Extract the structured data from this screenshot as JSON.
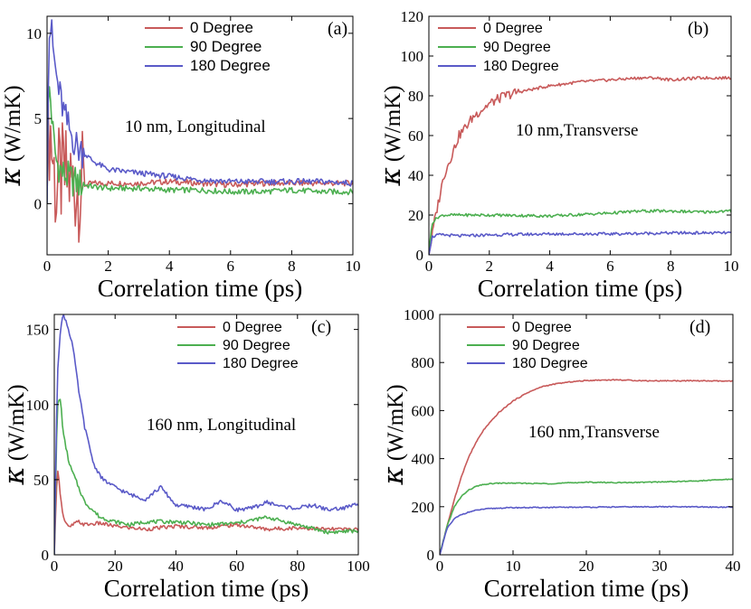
{
  "figure": {
    "colors": {
      "deg0": "#c85a5a",
      "deg90": "#4caf50",
      "deg180": "#5a5ac8"
    }
  },
  "chart_data": [
    {
      "type": "line",
      "panel_label": "(a)",
      "annotation": "10 nm, Longitudinal",
      "xlabel": "Correlation time (ps)",
      "ylabel_symbol": "κ",
      "ylabel_unit": "(W/mK)",
      "xlim": [
        0,
        10
      ],
      "ylim": [
        -3,
        11
      ],
      "xticks": [
        0,
        2,
        4,
        6,
        8,
        10
      ],
      "yticks": [
        0,
        5,
        10
      ],
      "legend": [
        "0 Degree",
        "90 Degree",
        "180 Degree"
      ],
      "series": [
        {
          "name": "0 Degree",
          "x": [
            0,
            0.05,
            0.1,
            0.2,
            0.3,
            0.4,
            0.6,
            0.8,
            1,
            1.5,
            2,
            3,
            4,
            5,
            6,
            7,
            8,
            9,
            10
          ],
          "y": [
            0,
            4,
            4.5,
            2.5,
            0.5,
            1.5,
            1.5,
            1.2,
            1.0,
            1.2,
            1.2,
            1.2,
            1.3,
            1.2,
            1.1,
            1.2,
            1.2,
            1.2,
            1.2
          ]
        },
        {
          "name": "90 Degree",
          "x": [
            0,
            0.05,
            0.1,
            0.2,
            0.3,
            0.5,
            0.8,
            1,
            1.5,
            2,
            3,
            4,
            5,
            6,
            7,
            8,
            9,
            10
          ],
          "y": [
            0,
            7,
            6.5,
            4,
            2.5,
            1.8,
            1.4,
            1.2,
            1.0,
            0.9,
            0.9,
            0.8,
            0.8,
            0.7,
            0.7,
            0.8,
            0.7,
            0.7
          ]
        },
        {
          "name": "180 Degree",
          "x": [
            0,
            0.05,
            0.1,
            0.15,
            0.2,
            0.3,
            0.4,
            0.6,
            0.8,
            1,
            1.5,
            2,
            2.5,
            3,
            4,
            5,
            6,
            7,
            8,
            9,
            10
          ],
          "y": [
            0,
            9.5,
            10.4,
            10,
            9,
            7.5,
            6.5,
            5,
            4,
            3.3,
            2.5,
            2.0,
            1.9,
            1.8,
            1.6,
            1.4,
            1.3,
            1.3,
            1.3,
            1.3,
            1.2
          ]
        }
      ]
    },
    {
      "type": "line",
      "panel_label": "(b)",
      "annotation": "10 nm,Transverse",
      "xlabel": "Correlation time (ps)",
      "ylabel_symbol": "κ",
      "ylabel_unit": "(W/mK)",
      "xlim": [
        0,
        10
      ],
      "ylim": [
        0,
        120
      ],
      "xticks": [
        0,
        2,
        4,
        6,
        8,
        10
      ],
      "yticks": [
        0,
        20,
        40,
        60,
        80,
        100,
        120
      ],
      "legend": [
        "0 Degree",
        "90 Degree",
        "180 Degree"
      ],
      "series": [
        {
          "name": "0 Degree",
          "x": [
            0,
            0.2,
            0.5,
            1,
            1.5,
            2,
            2.5,
            3,
            4,
            5,
            6,
            7,
            7.5,
            8,
            9,
            10
          ],
          "y": [
            0,
            18,
            40,
            60,
            70,
            76,
            80,
            82,
            85,
            87,
            88,
            89,
            89,
            88,
            89,
            89
          ]
        },
        {
          "name": "90 Degree",
          "x": [
            0,
            0.1,
            0.3,
            0.5,
            1,
            2,
            4,
            6,
            7,
            8,
            9,
            10
          ],
          "y": [
            0,
            16,
            19,
            20,
            20,
            20,
            19.5,
            21,
            22,
            22,
            21.5,
            22
          ]
        },
        {
          "name": "180 Degree",
          "x": [
            0,
            0.1,
            0.3,
            0.5,
            1,
            2,
            4,
            6,
            8,
            10
          ],
          "y": [
            0,
            9,
            10,
            10,
            9.5,
            10,
            10.5,
            10.5,
            11,
            11
          ]
        }
      ]
    },
    {
      "type": "line",
      "panel_label": "(c)",
      "annotation": "160 nm, Longitudinal",
      "xlabel": "Correlation time (ps)",
      "ylabel_symbol": "κ",
      "ylabel_unit": "(W/mK)",
      "xlim": [
        0,
        100
      ],
      "ylim": [
        0,
        160
      ],
      "xticks": [
        0,
        20,
        40,
        60,
        80,
        100
      ],
      "yticks": [
        0,
        50,
        100,
        150
      ],
      "legend": [
        "0 Degree",
        "90 Degree",
        "180 Degree"
      ],
      "series": [
        {
          "name": "0 Degree",
          "x": [
            0,
            1,
            2,
            3,
            4,
            5,
            6,
            8,
            10,
            15,
            20,
            25,
            30,
            40,
            50,
            60,
            70,
            80,
            90,
            100
          ],
          "y": [
            0,
            60,
            40,
            25,
            20,
            18,
            20,
            22,
            20,
            21,
            19,
            18,
            17,
            19,
            18,
            20,
            17,
            18,
            17,
            17
          ]
        },
        {
          "name": "90 Degree",
          "x": [
            0,
            1,
            2,
            3,
            5,
            8,
            10,
            15,
            20,
            25,
            30,
            40,
            50,
            60,
            70,
            80,
            90,
            100
          ],
          "y": [
            0,
            100,
            104,
            80,
            60,
            45,
            35,
            25,
            22,
            20,
            22,
            22,
            20,
            21,
            25,
            20,
            15,
            16
          ]
        },
        {
          "name": "180 Degree",
          "x": [
            0,
            1,
            2,
            3,
            4,
            6,
            8,
            10,
            13,
            16,
            20,
            25,
            30,
            35,
            40,
            45,
            50,
            55,
            60,
            65,
            70,
            75,
            80,
            85,
            90,
            95,
            100
          ],
          "y": [
            0,
            120,
            150,
            160,
            155,
            140,
            110,
            85,
            60,
            50,
            45,
            40,
            37,
            45,
            33,
            32,
            30,
            36,
            30,
            31,
            35,
            32,
            31,
            33,
            30,
            31,
            34
          ]
        }
      ]
    },
    {
      "type": "line",
      "panel_label": "(d)",
      "annotation": "160 nm,Transverse",
      "xlabel": "Correlation time (ps)",
      "ylabel_symbol": "κ",
      "ylabel_unit": "(W/mK)",
      "xlim": [
        0,
        40
      ],
      "ylim": [
        0,
        1000
      ],
      "xticks": [
        0,
        10,
        20,
        30,
        40
      ],
      "yticks": [
        0,
        200,
        400,
        600,
        800,
        1000
      ],
      "legend": [
        "0 Degree",
        "90 Degree",
        "180 Degree"
      ],
      "series": [
        {
          "name": "0 Degree",
          "x": [
            0,
            1,
            2,
            3,
            4,
            5,
            6,
            8,
            10,
            12,
            14,
            16,
            18,
            20,
            22,
            24,
            26,
            28,
            30,
            35,
            40
          ],
          "y": [
            0,
            120,
            230,
            330,
            410,
            470,
            520,
            590,
            640,
            675,
            700,
            712,
            720,
            725,
            727,
            728,
            726,
            724,
            724,
            724,
            722
          ]
        },
        {
          "name": "90 Degree",
          "x": [
            0,
            1,
            2,
            3,
            4,
            5,
            6,
            7,
            8,
            10,
            15,
            20,
            25,
            30,
            35,
            40
          ],
          "y": [
            0,
            120,
            200,
            245,
            270,
            285,
            292,
            296,
            298,
            298,
            296,
            302,
            300,
            303,
            307,
            315
          ]
        },
        {
          "name": "180 Degree",
          "x": [
            0,
            1,
            2,
            3,
            4,
            5,
            6,
            8,
            10,
            15,
            20,
            25,
            30,
            35,
            40
          ],
          "y": [
            0,
            110,
            150,
            168,
            178,
            185,
            190,
            194,
            196,
            197,
            198,
            199,
            200,
            199,
            198
          ]
        }
      ]
    }
  ]
}
